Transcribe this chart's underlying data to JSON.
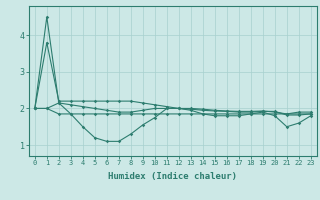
{
  "xlabel": "Humidex (Indice chaleur)",
  "x": [
    0,
    1,
    2,
    3,
    4,
    5,
    6,
    7,
    8,
    9,
    10,
    11,
    12,
    13,
    14,
    15,
    16,
    17,
    18,
    19,
    20,
    21,
    22,
    23
  ],
  "line1": [
    2.0,
    4.5,
    2.15,
    1.85,
    1.5,
    1.2,
    1.1,
    1.1,
    1.3,
    1.55,
    1.75,
    2.0,
    2.0,
    1.95,
    1.85,
    1.8,
    1.8,
    1.8,
    1.85,
    1.9,
    1.8,
    1.5,
    1.6,
    1.8
  ],
  "line2": [
    2.0,
    2.0,
    2.15,
    2.1,
    2.05,
    2.0,
    1.95,
    1.9,
    1.9,
    1.95,
    2.0,
    2.0,
    2.0,
    2.0,
    1.98,
    1.95,
    1.93,
    1.92,
    1.92,
    1.93,
    1.9,
    1.85,
    1.9,
    1.9
  ],
  "line3": [
    2.0,
    2.0,
    1.85,
    1.85,
    1.85,
    1.85,
    1.85,
    1.85,
    1.85,
    1.85,
    1.85,
    1.85,
    1.85,
    1.85,
    1.85,
    1.85,
    1.85,
    1.85,
    1.85,
    1.85,
    1.85,
    1.85,
    1.85,
    1.85
  ],
  "line4": [
    2.0,
    3.8,
    2.2,
    2.2,
    2.2,
    2.2,
    2.2,
    2.2,
    2.2,
    2.15,
    2.1,
    2.05,
    2.0,
    1.98,
    1.95,
    1.93,
    1.92,
    1.9,
    1.9,
    1.92,
    1.92,
    1.82,
    1.82,
    1.85
  ],
  "line_color": "#2d7d6f",
  "bg_color": "#cce8e6",
  "grid_color": "#a8d0ce",
  "figsize": [
    3.2,
    2.0
  ],
  "dpi": 100,
  "ylim": [
    0.7,
    4.8
  ],
  "yticks": [
    1,
    2,
    3,
    4
  ],
  "title_fontsize": 7,
  "label_fontsize": 6.5
}
